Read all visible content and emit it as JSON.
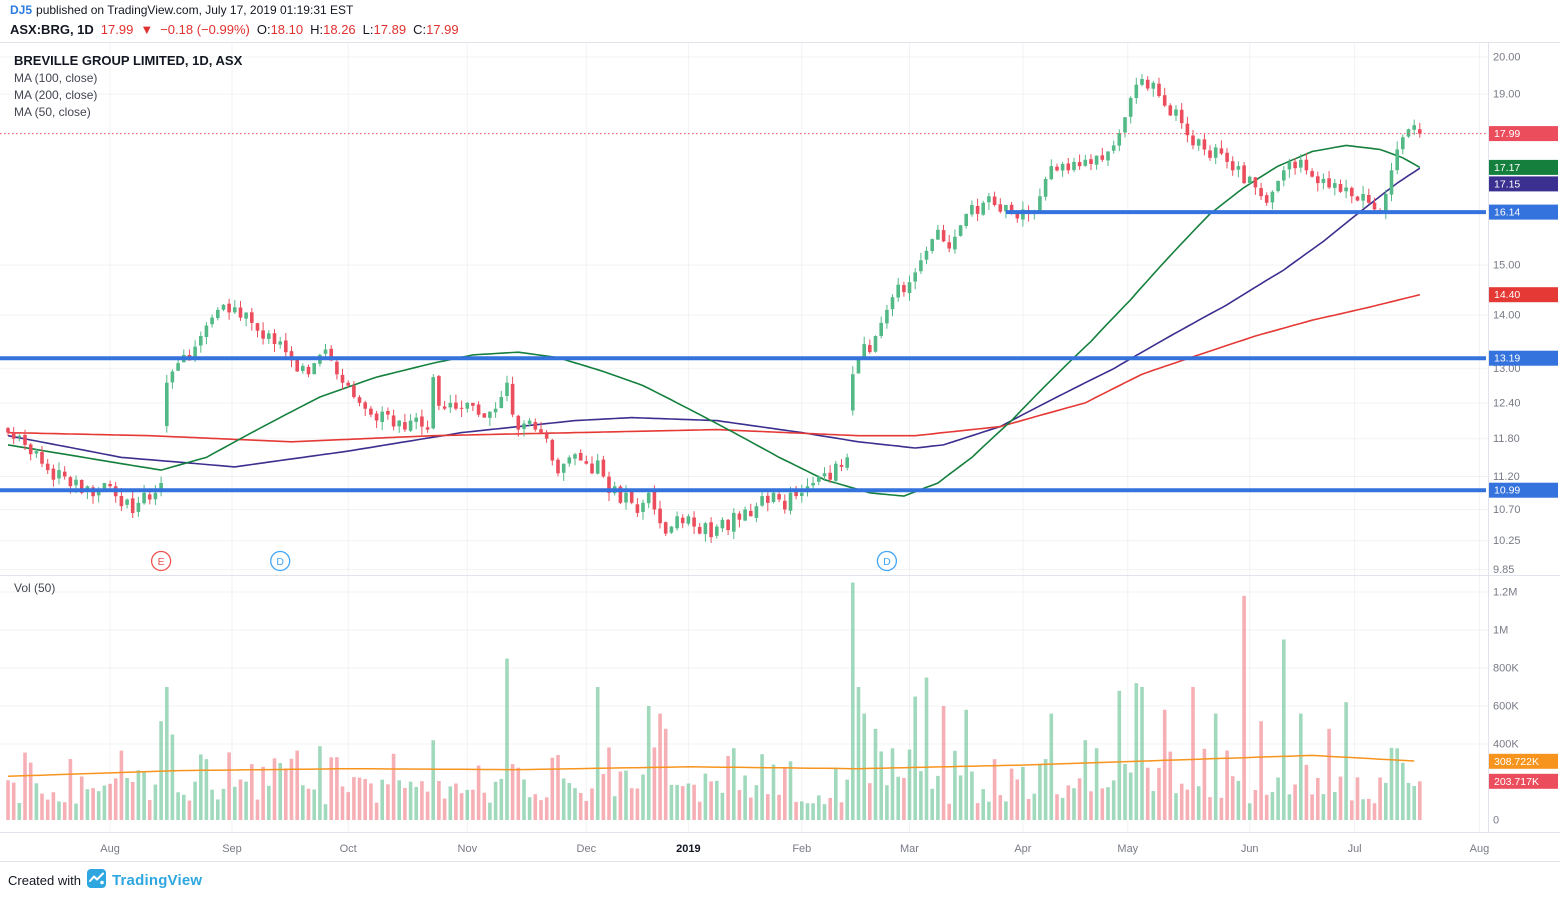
{
  "header": {
    "line1": {
      "author": "DJ5",
      "text": "published on TradingView.com, July 17, 2019 01:19:31 EST"
    },
    "line2": {
      "symbol": "ASX:BRG, 1D",
      "last": "17.99",
      "arrow": "▼",
      "change": "−0.18 (−0.99%)",
      "o_label": "O:",
      "o_value": "18.10",
      "h_label": "H:",
      "h_value": "18.26",
      "l_label": "L:",
      "l_value": "17.89",
      "c_label": "C:",
      "c_value": "17.99"
    }
  },
  "legend": {
    "title": "BREVILLE GROUP LIMITED, 1D, ASX",
    "indicators": [
      "MA (100, close)",
      "MA (200, close)",
      "MA (50, close)"
    ]
  },
  "volume_legend": "Vol (50)",
  "footer": {
    "created_with": "Created with",
    "brand": "TradingView"
  },
  "colors": {
    "up": "#53b987",
    "down": "#eb4d5c",
    "up_vol": "rgba(83,185,135,0.55)",
    "down_vol": "rgba(235,77,92,0.45)",
    "ma50": "#15803d",
    "ma100": "#3b2f8f",
    "ma200": "#e53935",
    "vol_ma": "#f7941e",
    "hline": "#3472dd",
    "last_price": "#eb4d5c",
    "axis_text": "#787b86",
    "grid": "rgba(42,46,57,0.06)",
    "border": "#e0e3eb",
    "marker_e": "#ef5350",
    "marker_d": "#42a5f5"
  },
  "chart_data": {
    "type": "candlestick",
    "symbol": "ASX:BRG",
    "exchange": "ASX",
    "interval": "1D",
    "title": "BREVILLE GROUP LIMITED, 1D, ASX",
    "scale": "log",
    "ylim": [
      9.85,
      20.0
    ],
    "grid": true,
    "x_axis_ticks": [
      [
        "Aug",
        18
      ],
      [
        "Sep",
        39.5
      ],
      [
        "Oct",
        60
      ],
      [
        "Nov",
        81
      ],
      [
        "Dec",
        102
      ],
      [
        "2019",
        120
      ],
      [
        "Feb",
        140
      ],
      [
        "Mar",
        159
      ],
      [
        "Apr",
        179
      ],
      [
        "May",
        197.5
      ],
      [
        "Jun",
        219
      ],
      [
        "Jul",
        237.5
      ],
      [
        "Aug",
        259.5
      ]
    ],
    "y_ticks_price": [
      [
        "20.00",
        20.0
      ],
      [
        "19.00",
        19.0
      ],
      [
        "15.00",
        15.0
      ],
      [
        "14.00",
        14.0
      ],
      [
        "13.00",
        13.0
      ],
      [
        "12.40",
        12.4
      ],
      [
        "11.80",
        11.8
      ],
      [
        "11.20",
        11.2
      ],
      [
        "10.70",
        10.7
      ],
      [
        "10.25",
        10.25
      ],
      [
        "9.85",
        9.85
      ]
    ],
    "y_ticks_volume": [
      [
        "1.2M",
        1200000
      ],
      [
        "1M",
        1000000
      ],
      [
        "800K",
        800000
      ],
      [
        "600K",
        600000
      ],
      [
        "400K",
        400000
      ],
      [
        "0",
        0
      ]
    ],
    "price_scale_badges": [
      {
        "label": "17.99",
        "price": 17.99,
        "bg": "#eb4d5c",
        "name": "last-price-badge"
      },
      {
        "label": "17.17",
        "price": 17.17,
        "bg": "#15803d",
        "name": "ma50-badge"
      },
      {
        "label": "17.15",
        "price": 17.15,
        "bg": "#3b2f8f",
        "name": "ma100-badge"
      },
      {
        "label": "16.14",
        "price": 16.14,
        "bg": "#3472dd",
        "name": "hline-badge-1"
      },
      {
        "label": "14.40",
        "price": 14.4,
        "bg": "#e53935",
        "name": "ma200-badge"
      },
      {
        "label": "13.19",
        "price": 13.19,
        "bg": "#3472dd",
        "name": "hline-badge-2"
      },
      {
        "label": "10.99",
        "price": 10.99,
        "bg": "#3472dd",
        "name": "hline-badge-3"
      }
    ],
    "volume_scale_badges": [
      {
        "label": "308.722K",
        "value": 308722,
        "bg": "#f7941e",
        "name": "vol-ma-badge"
      },
      {
        "label": "203.717K",
        "value": 203717,
        "bg": "#eb4d5c",
        "name": "vol-last-badge"
      }
    ],
    "horizontal_lines": [
      {
        "price": 16.14,
        "start_day": 176
      },
      {
        "price": 13.19,
        "start_day": 0
      },
      {
        "price": 10.99,
        "start_day": 0
      }
    ],
    "last_price_line": 17.99,
    "markers": [
      {
        "day": 27,
        "label": "E",
        "type": "earnings"
      },
      {
        "day": 48,
        "label": "D",
        "type": "dividend"
      },
      {
        "day": 155,
        "label": "D",
        "type": "dividend"
      }
    ],
    "last_candle": {
      "o": 18.1,
      "h": 18.26,
      "l": 17.89,
      "c": 17.99
    },
    "gap_days": [
      28,
      149
    ],
    "closes": [
      11.9,
      11.8,
      11.85,
      11.7,
      11.55,
      11.6,
      11.4,
      11.3,
      11.15,
      11.3,
      11.2,
      11.05,
      11.15,
      10.95,
      11.05,
      10.9,
      11.0,
      11.1,
      11.05,
      10.9,
      10.75,
      10.85,
      10.65,
      10.8,
      10.95,
      10.85,
      10.95,
      11.1,
      12.75,
      12.95,
      13.1,
      13.25,
      13.15,
      13.4,
      13.6,
      13.8,
      13.95,
      14.1,
      14.2,
      14.05,
      14.15,
      13.95,
      14.05,
      13.85,
      13.7,
      13.55,
      13.65,
      13.45,
      13.5,
      13.3,
      13.15,
      12.95,
      13.05,
      12.9,
      13.1,
      13.25,
      13.35,
      13.15,
      12.9,
      12.75,
      12.7,
      12.5,
      12.4,
      12.3,
      12.2,
      12.1,
      12.25,
      12.2,
      12.0,
      12.1,
      11.95,
      12.1,
      12.15,
      12.0,
      11.95,
      12.85,
      12.35,
      12.3,
      12.4,
      12.3,
      12.3,
      12.4,
      12.35,
      12.2,
      12.15,
      12.25,
      12.3,
      12.5,
      12.75,
      12.2,
      11.95,
      12.05,
      12.1,
      11.95,
      11.9,
      11.8,
      11.45,
      11.25,
      11.4,
      11.5,
      11.55,
      11.45,
      11.4,
      11.25,
      11.45,
      11.2,
      10.95,
      11.05,
      10.8,
      10.95,
      10.8,
      10.65,
      10.8,
      10.95,
      10.7,
      10.5,
      10.35,
      10.45,
      10.6,
      10.5,
      10.6,
      10.45,
      10.35,
      10.5,
      10.3,
      10.45,
      10.55,
      10.4,
      10.65,
      10.55,
      10.7,
      10.6,
      10.75,
      10.9,
      10.8,
      10.95,
      10.85,
      10.7,
      10.95,
      10.9,
      10.95,
      11.05,
      11.1,
      11.2,
      11.25,
      11.15,
      11.4,
      11.35,
      11.5,
      12.9,
      13.2,
      13.45,
      13.3,
      13.6,
      13.85,
      14.1,
      14.35,
      14.6,
      14.45,
      14.65,
      14.85,
      15.1,
      15.3,
      15.55,
      15.75,
      15.5,
      15.35,
      15.6,
      15.85,
      16.1,
      16.3,
      16.1,
      16.35,
      16.5,
      16.3,
      16.15,
      16.3,
      16.1,
      16.0,
      16.2,
      16.1,
      16.15,
      16.5,
      16.9,
      17.2,
      17.1,
      17.25,
      17.1,
      17.3,
      17.2,
      17.35,
      17.25,
      17.45,
      17.35,
      17.55,
      17.7,
      18.0,
      18.4,
      18.9,
      19.25,
      19.4,
      19.15,
      19.3,
      18.95,
      18.7,
      18.45,
      18.6,
      18.25,
      17.95,
      17.7,
      17.85,
      17.6,
      17.4,
      17.65,
      17.5,
      17.3,
      17.1,
      17.2,
      16.8,
      16.95,
      16.7,
      16.5,
      16.35,
      16.6,
      16.85,
      17.1,
      17.3,
      17.15,
      17.35,
      17.1,
      16.95,
      16.8,
      16.9,
      16.7,
      16.8,
      16.6,
      16.7,
      16.5,
      16.4,
      16.55,
      16.35,
      16.2,
      16.1,
      16.55,
      17.1,
      17.6,
      17.9,
      18.1,
      18.2,
      17.99
    ],
    "volume_spikes": {
      "27": 520000,
      "28": 700000,
      "29": 450000,
      "35": 320000,
      "45": 280000,
      "48": 300000,
      "57": 330000,
      "75": 420000,
      "88": 850000,
      "104": 700000,
      "113": 600000,
      "115": 560000,
      "116": 480000,
      "149": 1250000,
      "150": 700000,
      "151": 560000,
      "153": 480000,
      "160": 650000,
      "162": 750000,
      "165": 600000,
      "169": 580000,
      "174": 320000,
      "184": 560000,
      "190": 420000,
      "196": 680000,
      "199": 720000,
      "200": 700000,
      "204": 580000,
      "209": 700000,
      "213": 560000,
      "218": 1180000,
      "221": 520000,
      "225": 950000,
      "228": 560000,
      "233": 480000,
      "236": 620000,
      "244": 380000,
      "249": 203717
    },
    "ma": {
      "ma50": {
        "label": "MA (50, close)",
        "points": [
          [
            0,
            11.7
          ],
          [
            10,
            11.55
          ],
          [
            20,
            11.4
          ],
          [
            27,
            11.3
          ],
          [
            35,
            11.5
          ],
          [
            45,
            12.0
          ],
          [
            55,
            12.5
          ],
          [
            65,
            12.85
          ],
          [
            75,
            13.1
          ],
          [
            82,
            13.25
          ],
          [
            90,
            13.3
          ],
          [
            97,
            13.2
          ],
          [
            105,
            12.95
          ],
          [
            112,
            12.7
          ],
          [
            120,
            12.3
          ],
          [
            128,
            11.9
          ],
          [
            136,
            11.5
          ],
          [
            144,
            11.15
          ],
          [
            152,
            10.95
          ],
          [
            158,
            10.9
          ],
          [
            164,
            11.1
          ],
          [
            170,
            11.5
          ],
          [
            177,
            12.1
          ],
          [
            184,
            12.8
          ],
          [
            191,
            13.5
          ],
          [
            198,
            14.3
          ],
          [
            205,
            15.2
          ],
          [
            212,
            16.1
          ],
          [
            218,
            16.7
          ],
          [
            224,
            17.2
          ],
          [
            230,
            17.55
          ],
          [
            236,
            17.7
          ],
          [
            242,
            17.6
          ],
          [
            246,
            17.4
          ],
          [
            249,
            17.17
          ]
        ]
      },
      "ma100": {
        "label": "MA (100, close)",
        "points": [
          [
            0,
            11.85
          ],
          [
            20,
            11.5
          ],
          [
            40,
            11.35
          ],
          [
            60,
            11.6
          ],
          [
            80,
            11.9
          ],
          [
            100,
            12.1
          ],
          [
            110,
            12.15
          ],
          [
            125,
            12.1
          ],
          [
            140,
            11.9
          ],
          [
            150,
            11.75
          ],
          [
            160,
            11.65
          ],
          [
            165,
            11.7
          ],
          [
            175,
            12.0
          ],
          [
            185,
            12.5
          ],
          [
            195,
            13.0
          ],
          [
            205,
            13.6
          ],
          [
            215,
            14.2
          ],
          [
            225,
            14.9
          ],
          [
            232,
            15.5
          ],
          [
            240,
            16.3
          ],
          [
            245,
            16.8
          ],
          [
            249,
            17.15
          ]
        ]
      },
      "ma200": {
        "label": "MA (200, close)",
        "points": [
          [
            0,
            11.9
          ],
          [
            25,
            11.85
          ],
          [
            50,
            11.75
          ],
          [
            75,
            11.85
          ],
          [
            100,
            11.9
          ],
          [
            125,
            11.95
          ],
          [
            150,
            11.85
          ],
          [
            160,
            11.85
          ],
          [
            175,
            12.0
          ],
          [
            190,
            12.4
          ],
          [
            200,
            12.9
          ],
          [
            210,
            13.25
          ],
          [
            220,
            13.6
          ],
          [
            230,
            13.9
          ],
          [
            240,
            14.15
          ],
          [
            249,
            14.4
          ]
        ]
      }
    },
    "vol_ma": {
      "label": "Vol MA (50)",
      "points": [
        [
          0,
          230000
        ],
        [
          30,
          260000
        ],
        [
          60,
          270000
        ],
        [
          90,
          265000
        ],
        [
          120,
          280000
        ],
        [
          150,
          270000
        ],
        [
          180,
          290000
        ],
        [
          210,
          320000
        ],
        [
          230,
          340000
        ],
        [
          249,
          308722
        ]
      ]
    }
  }
}
